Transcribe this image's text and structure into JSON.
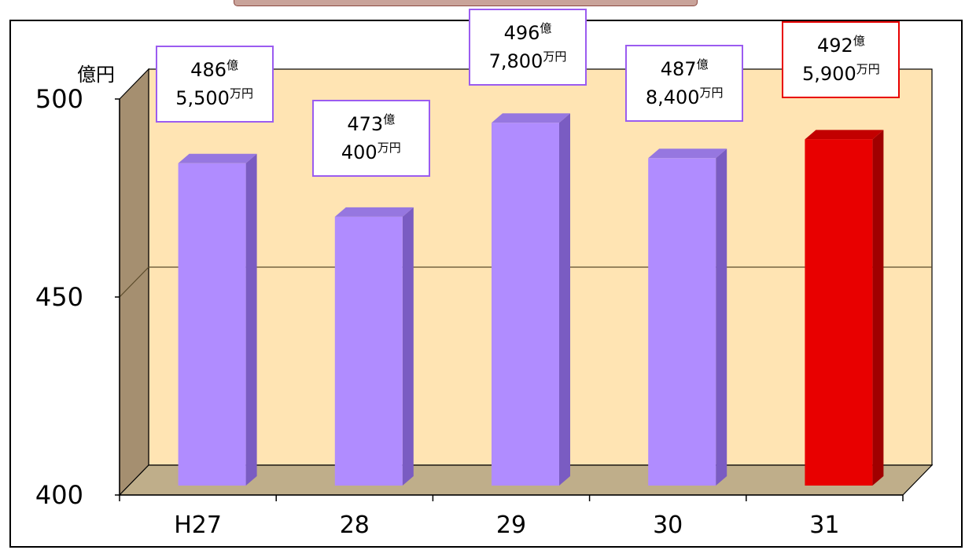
{
  "chart_data": {
    "type": "bar",
    "y_unit": "億円",
    "ylim": [
      400,
      500
    ],
    "y_ticks": [
      "400",
      "450",
      "500"
    ],
    "y_tick_values": [
      400,
      450,
      500
    ],
    "categories": [
      "H27",
      "28",
      "29",
      "30",
      "31"
    ],
    "values": [
      486.55,
      473.04,
      496.78,
      487.84,
      492.59
    ],
    "data_labels": [
      {
        "oku": "486",
        "oku_unit": "億",
        "man": "5,500",
        "man_unit": "万円"
      },
      {
        "oku": "473",
        "oku_unit": "億",
        "man": "400",
        "man_unit": "万円"
      },
      {
        "oku": "496",
        "oku_unit": "億",
        "man": "7,800",
        "man_unit": "万円"
      },
      {
        "oku": "487",
        "oku_unit": "億",
        "man": "8,400",
        "man_unit": "万円"
      },
      {
        "oku": "492",
        "oku_unit": "億",
        "man": "5,900",
        "man_unit": "万円"
      }
    ],
    "highlight_index": 4,
    "grid": true
  },
  "colors": {
    "bar": "#b08cff",
    "bar_side": "#7a5cc2",
    "bar_top": "#9677e0",
    "highlight": "#e80000",
    "highlight_side": "#a00000",
    "highlight_top": "#c20000",
    "back_wall": "#ffe4b3",
    "side_wall": "#a58f70",
    "floor": "#bfae8a",
    "gridline": "#5a4a2a",
    "label_border": "#9b5cf0",
    "label_border_highlight": "#e80000"
  }
}
